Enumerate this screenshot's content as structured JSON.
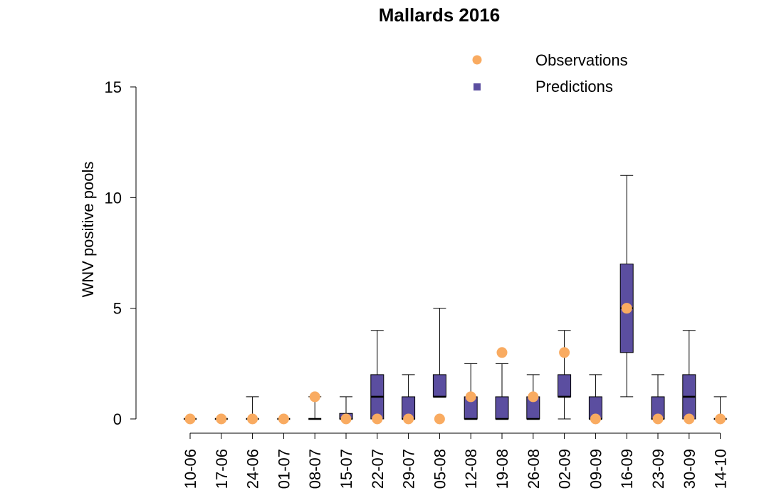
{
  "chart_data": {
    "type": "box",
    "title": "Mallards 2016",
    "ylabel": "WNV positive pools",
    "xlabel": "",
    "ylim": [
      0,
      15
    ],
    "yticks": [
      0,
      5,
      10,
      15
    ],
    "grid": false,
    "legend_position": "top-right",
    "legend": [
      {
        "name": "Observations",
        "marker": "circle",
        "color": "#F9AB61"
      },
      {
        "name": "Predictions",
        "marker": "square",
        "color": "#5B4EA0"
      }
    ],
    "categories": [
      "10-06",
      "17-06",
      "24-06",
      "01-07",
      "08-07",
      "15-07",
      "22-07",
      "29-07",
      "05-08",
      "12-08",
      "19-08",
      "26-08",
      "02-09",
      "09-09",
      "16-09",
      "23-09",
      "30-09",
      "14-10"
    ],
    "predictions": [
      {
        "whisker_low": 0,
        "q1": 0,
        "median": 0,
        "q3": 0,
        "whisker_high": 0
      },
      {
        "whisker_low": 0,
        "q1": 0,
        "median": 0,
        "q3": 0,
        "whisker_high": 0
      },
      {
        "whisker_low": 0,
        "q1": 0,
        "median": 0,
        "q3": 0,
        "whisker_high": 1
      },
      {
        "whisker_low": 0,
        "q1": 0,
        "median": 0,
        "q3": 0,
        "whisker_high": 0
      },
      {
        "whisker_low": 0,
        "q1": 0,
        "median": 0,
        "q3": 0,
        "whisker_high": 1
      },
      {
        "whisker_low": 0,
        "q1": 0,
        "median": 0,
        "q3": 0.25,
        "whisker_high": 1
      },
      {
        "whisker_low": 0,
        "q1": 0,
        "median": 1,
        "q3": 2,
        "whisker_high": 4
      },
      {
        "whisker_low": 0,
        "q1": 0,
        "median": 0,
        "q3": 1,
        "whisker_high": 2
      },
      {
        "whisker_low": 1,
        "q1": 1,
        "median": 1,
        "q3": 2,
        "whisker_high": 5
      },
      {
        "whisker_low": 0,
        "q1": 0,
        "median": 0,
        "q3": 1,
        "whisker_high": 2.5
      },
      {
        "whisker_low": 0,
        "q1": 0,
        "median": 0,
        "q3": 1,
        "whisker_high": 2.5
      },
      {
        "whisker_low": 0,
        "q1": 0,
        "median": 0,
        "q3": 1,
        "whisker_high": 2
      },
      {
        "whisker_low": 0,
        "q1": 1,
        "median": 1,
        "q3": 2,
        "whisker_high": 4
      },
      {
        "whisker_low": 0,
        "q1": 0,
        "median": 0,
        "q3": 1,
        "whisker_high": 2
      },
      {
        "whisker_low": 1,
        "q1": 3,
        "median": 5,
        "q3": 7,
        "whisker_high": 11
      },
      {
        "whisker_low": 0,
        "q1": 0,
        "median": 0,
        "q3": 1,
        "whisker_high": 2
      },
      {
        "whisker_low": 0,
        "q1": 0,
        "median": 1,
        "q3": 2,
        "whisker_high": 4
      },
      {
        "whisker_low": 0,
        "q1": 0,
        "median": 0,
        "q3": 0,
        "whisker_high": 1
      }
    ],
    "observations": [
      0,
      0,
      0,
      0,
      1,
      0,
      0,
      0,
      0,
      1,
      3,
      1,
      3,
      0,
      5,
      0,
      0,
      0
    ]
  }
}
